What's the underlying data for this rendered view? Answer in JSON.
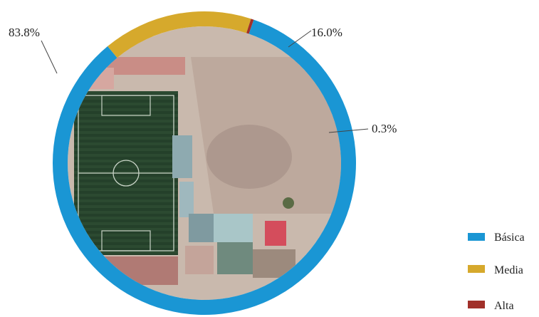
{
  "chart_data": {
    "type": "pie",
    "variant": "donut",
    "series": [
      {
        "name": "Básica",
        "value": 83.8,
        "label": "83.8%",
        "color": "#1a96d4"
      },
      {
        "name": "Media",
        "value": 16.0,
        "label": "16.0%",
        "color": "#d6a92c"
      },
      {
        "name": "Alta",
        "value": 0.3,
        "label": "0.3%",
        "color": "#a1302a"
      }
    ],
    "start_angle_deg": 19,
    "direction": "clockwise",
    "legend_position": "bottom-right",
    "center_image": "aerial photo of a football field and adjacent dirt lot"
  }
}
